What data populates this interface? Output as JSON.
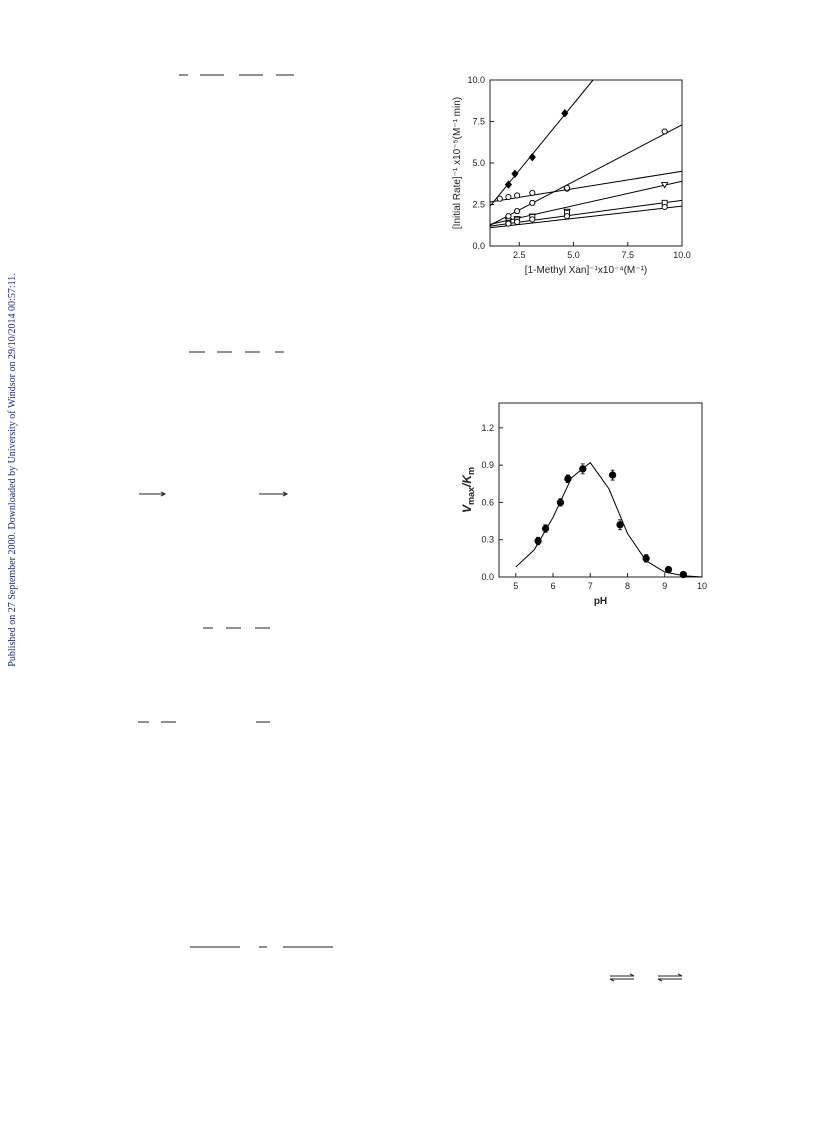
{
  "margin_note": "Published on 27 September 2000. Downloaded by University of Windsor on 29/10/2014 00:57:11.",
  "chart_data": [
    {
      "type": "scatter",
      "xlabel": "[1-Methyl Xan]⁻¹x10⁻⁴(M⁻¹)",
      "ylabel": "[Initial Rate]⁻¹ x10⁻⁵(M⁻¹ min)",
      "xlim": [
        1.15,
        10
      ],
      "ylim": [
        0,
        10
      ],
      "xticks": [
        2.5,
        {
          "value": 5,
          "label": "5.0"
        },
        7.5,
        {
          "value": 10,
          "label": "10.0"
        }
      ],
      "yticks": [
        {
          "value": 0,
          "label": "0.0"
        },
        2.5,
        {
          "value": 5,
          "label": "5.0"
        },
        7.5,
        {
          "value": 10,
          "label": "10.0"
        }
      ],
      "series": [
        {
          "marker": "diamond",
          "filled": true,
          "color": "#000000",
          "x": [
            2,
            2.3,
            3.1,
            4.6
          ],
          "values": [
            3.7,
            4.35,
            5.35,
            8.0
          ],
          "fit": {
            "x": [
              1.15,
              5.9
            ],
            "values": [
              2.4,
              10
            ]
          }
        },
        {
          "marker": "circle",
          "filled": false,
          "color": "#000000",
          "x": [
            1.6,
            2.0,
            2.4,
            3.1,
            4.7
          ],
          "values": [
            2.85,
            2.95,
            3.05,
            3.2,
            3.45
          ],
          "fit": {
            "x": [
              1.15,
              10
            ],
            "values": [
              2.65,
              4.5
            ]
          }
        },
        {
          "marker": "hexagon",
          "filled": false,
          "color": "#000000",
          "x": [
            2.0,
            2.4,
            3.1,
            4.7,
            9.2
          ],
          "values": [
            1.8,
            2.1,
            2.6,
            3.5,
            6.9
          ],
          "fit": {
            "x": [
              1.15,
              10
            ],
            "values": [
              1.25,
              7.3
            ]
          }
        },
        {
          "marker": "triangle-down",
          "filled": false,
          "color": "#000000",
          "x": [
            2.0,
            2.4,
            3.1,
            4.7,
            9.2
          ],
          "values": [
            1.55,
            1.65,
            1.8,
            2.1,
            3.7
          ],
          "fit": {
            "x": [
              1.15,
              10
            ],
            "values": [
              1.3,
              3.9
            ]
          }
        },
        {
          "marker": "square",
          "filled": false,
          "color": "#000000",
          "x": [
            2.0,
            2.4,
            3.1,
            4.7,
            9.2
          ],
          "values": [
            1.4,
            1.55,
            1.75,
            2.0,
            2.6
          ],
          "fit": {
            "x": [
              1.15,
              10
            ],
            "values": [
              1.2,
              2.75
            ]
          }
        },
        {
          "marker": "circle",
          "filled": false,
          "color": "#000000",
          "x": [
            2.0,
            2.4,
            3.1,
            4.7,
            9.2
          ],
          "values": [
            1.35,
            1.45,
            1.6,
            1.8,
            2.35
          ],
          "fit": {
            "x": [
              1.15,
              10
            ],
            "values": [
              1.1,
              2.4
            ]
          }
        }
      ]
    },
    {
      "type": "scatter",
      "xlabel": "pH",
      "ylabel": [
        "V",
        "max",
        "/K",
        "m"
      ],
      "xlim": [
        4.55,
        10
      ],
      "ylim": [
        0,
        1.4
      ],
      "xticks": [
        5,
        6,
        7,
        8,
        9,
        10
      ],
      "yticks": [
        {
          "value": 0,
          "label": "0.0"
        },
        0.3,
        0.6,
        0.9,
        1.2
      ],
      "series": [
        {
          "marker": "circle",
          "filled": true,
          "color": "#000000",
          "x": [
            5.6,
            5.8,
            6.2,
            6.4,
            6.8,
            7.6,
            7.8,
            8.5,
            9.1,
            9.5
          ],
          "values": [
            0.29,
            0.39,
            0.6,
            0.79,
            0.87,
            0.82,
            0.42,
            0.15,
            0.06,
            0.02
          ],
          "errors": [
            0.03,
            0.03,
            0.03,
            0.03,
            0.04,
            0.04,
            0.04,
            0.03,
            0.01,
            0.01
          ],
          "fit": {
            "x": [
              5,
              5.5,
              6,
              6.5,
              7,
              7.5,
              8,
              8.5,
              9,
              9.5,
              10
            ],
            "values": [
              0.08,
              0.22,
              0.48,
              0.8,
              0.92,
              0.71,
              0.35,
              0.13,
              0.04,
              0.01,
              0.0
            ]
          }
        }
      ]
    }
  ]
}
